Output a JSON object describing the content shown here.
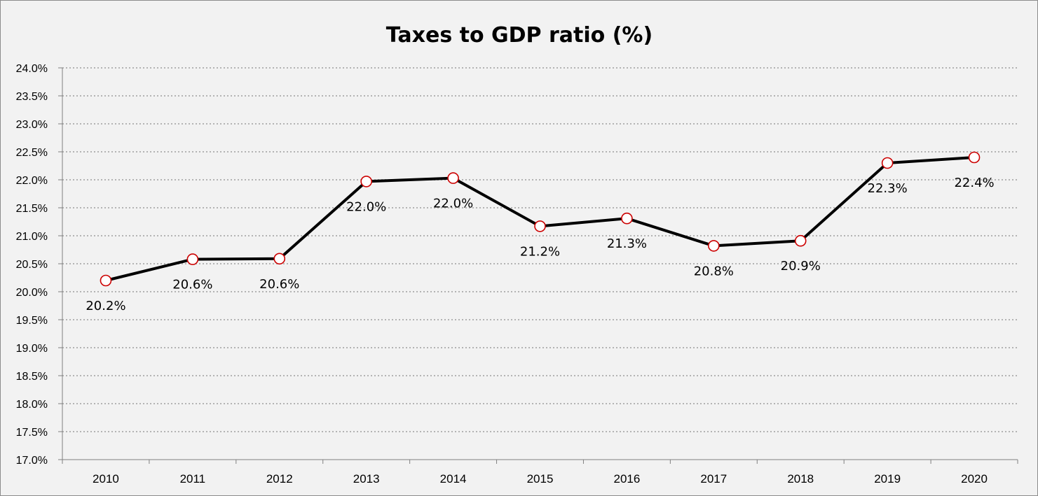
{
  "chart_data": {
    "type": "line",
    "title": "Taxes to GDP ratio (%)",
    "xlabel": "",
    "ylabel": "",
    "categories": [
      "2010",
      "2011",
      "2012",
      "2013",
      "2014",
      "2015",
      "2016",
      "2017",
      "2018",
      "2019",
      "2020"
    ],
    "series": [
      {
        "values": [
          20.2,
          20.58,
          20.59,
          21.97,
          22.03,
          21.17,
          21.31,
          20.82,
          20.91,
          22.3,
          22.4
        ],
        "data_labels": [
          "20.2%",
          "20.6%",
          "20.6%",
          "22.0%",
          "22.0%",
          "21.2%",
          "21.3%",
          "20.8%",
          "20.9%",
          "22.3%",
          "22.4%"
        ]
      }
    ],
    "ylim": [
      17.0,
      24.0
    ],
    "yticks": [
      17.0,
      17.5,
      18.0,
      18.5,
      19.0,
      19.5,
      20.0,
      20.5,
      21.0,
      21.5,
      22.0,
      22.5,
      23.0,
      23.5,
      24.0
    ],
    "ytick_labels": [
      "17.0%",
      "17.5%",
      "18.0%",
      "18.5%",
      "19.0%",
      "19.5%",
      "20.0%",
      "20.5%",
      "21.0%",
      "21.5%",
      "22.0%",
      "22.5%",
      "23.0%",
      "23.5%",
      "24.0%"
    ],
    "grid": "horizontal-dotted",
    "legend": "none",
    "colors": {
      "background": "#f2f2f2",
      "line": "#000000",
      "marker_fill": "#ffffff",
      "marker_stroke": "#cc0000",
      "grid": "#b3b3b3",
      "axis": "#808080"
    }
  }
}
